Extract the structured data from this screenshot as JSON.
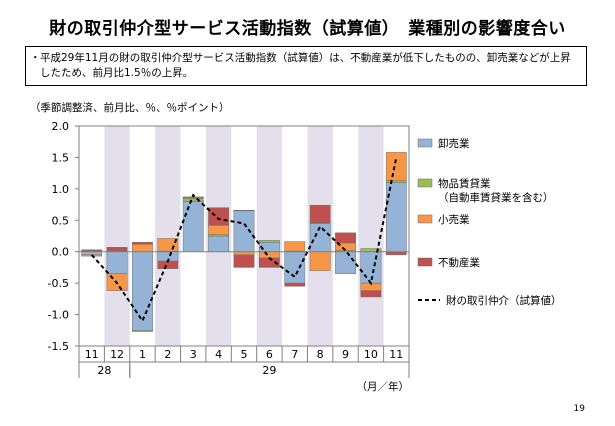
{
  "title": "財の取引仲介型サービス活動指数（試算値）　業種別の影響度合い",
  "note": "平成29年11月の財の取引仲介型サービス活動指数（試算値）は、不動産業が低下したものの、卸売業などが上昇したため、前月比1.5％の上昇。",
  "note_bullet": "・",
  "unit_label": "（季節調整済、前月比、％、％ポイント）",
  "page_number": "19",
  "chart_data": {
    "type": "bar",
    "stacked": true,
    "categories": [
      "11",
      "12",
      "1",
      "2",
      "3",
      "4",
      "5",
      "6",
      "7",
      "8",
      "9",
      "10",
      "11"
    ],
    "year_labels": [
      {
        "label": "28",
        "from": 0,
        "to": 1
      },
      {
        "label": "29",
        "from": 2,
        "to": 12
      }
    ],
    "x_unit": "（月／年）",
    "ylim": [
      -1.5,
      2.0
    ],
    "yticks": [
      "2.0",
      "1.5",
      "1.0",
      "0.5",
      "0.0",
      "-0.5",
      "-1.0",
      "-1.5"
    ],
    "ytick_values": [
      2.0,
      1.5,
      1.0,
      0.5,
      0.0,
      -0.5,
      -1.0,
      -1.5
    ],
    "shaded_columns": [
      1,
      3,
      5,
      7,
      9,
      11
    ],
    "shade_color": "#e4dfec",
    "series": [
      {
        "name": "卸売業",
        "color": "#95b3d7",
        "values": [
          -0.05,
          -0.35,
          -1.25,
          -0.15,
          0.8,
          0.25,
          0.65,
          0.15,
          -0.5,
          0.45,
          -0.35,
          -0.5,
          1.1
        ]
      },
      {
        "name": "物品賃貸業",
        "sub": "（自動車賃貸業を含む）",
        "color": "#9bbb59",
        "values": [
          0.01,
          0.01,
          -0.02,
          0.01,
          0.05,
          0.02,
          0.01,
          0.03,
          0.01,
          0.01,
          0.02,
          0.05,
          0.03
        ]
      },
      {
        "name": "小売業",
        "color": "#f79646",
        "values": [
          -0.02,
          -0.27,
          0.12,
          0.2,
          0.02,
          0.15,
          -0.05,
          -0.1,
          0.15,
          -0.3,
          0.12,
          -0.12,
          0.45
        ]
      },
      {
        "name": "不動産業",
        "color": "#c0504d",
        "values": [
          0.02,
          0.06,
          0.03,
          -0.12,
          0.0,
          0.28,
          -0.2,
          -0.15,
          -0.05,
          0.28,
          0.16,
          -0.1,
          -0.05
        ]
      }
    ],
    "line": {
      "name": "財の取引仲介（試算値）",
      "color": "#000000",
      "values": [
        -0.05,
        -0.5,
        -1.1,
        -0.15,
        0.9,
        0.52,
        0.45,
        -0.1,
        -0.4,
        0.4,
        0.02,
        -0.5,
        1.5
      ]
    }
  }
}
